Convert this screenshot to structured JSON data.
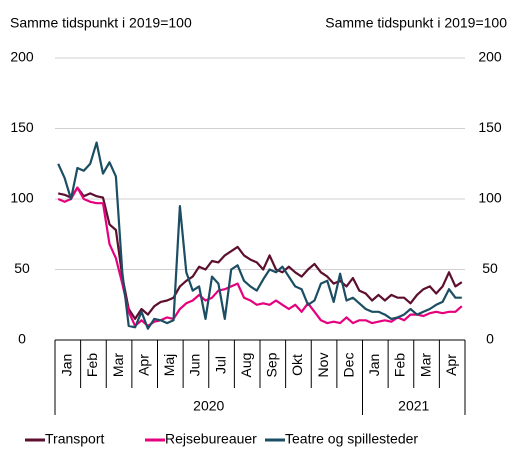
{
  "chart_data": {
    "type": "line",
    "y_axis_label": "Samme tidspunkt i 2019=100",
    "y2_axis_label": "Samme tidspunkt i 2019=100",
    "categories": [
      "Jan",
      null,
      null,
      null,
      "Feb",
      null,
      null,
      null,
      "Mar",
      null,
      null,
      null,
      "Apr",
      null,
      null,
      null,
      "Maj",
      null,
      null,
      null,
      "Jun",
      null,
      null,
      null,
      "Jul",
      null,
      null,
      null,
      "Aug",
      null,
      null,
      null,
      "Sep",
      null,
      null,
      null,
      "Okt",
      null,
      null,
      null,
      "Nov",
      null,
      null,
      null,
      "Dec",
      null,
      null,
      null,
      "Jan",
      null,
      null,
      null,
      "Feb",
      null,
      null,
      null,
      "Mar",
      null,
      null,
      null,
      "Apr",
      null,
      null,
      null
    ],
    "year_groups": [
      {
        "label": "2020",
        "categories": 48
      },
      {
        "label": "2021",
        "categories": 16
      }
    ],
    "series": [
      {
        "name": "Transport",
        "color": "#5c0f2e",
        "values": [
          104,
          103,
          101,
          108,
          102,
          104,
          102,
          101,
          82,
          78,
          45,
          22,
          15,
          22,
          18,
          24,
          27,
          28,
          30,
          38,
          42,
          45,
          52,
          50,
          56,
          55,
          60,
          63,
          66,
          60,
          57,
          55,
          50,
          60,
          50,
          48,
          52,
          48,
          45,
          50,
          54,
          48,
          45,
          40,
          42,
          38,
          44,
          35,
          33,
          28,
          32,
          28,
          32,
          30,
          30,
          26,
          32,
          36,
          38,
          33,
          38,
          48,
          38,
          41
        ]
      },
      {
        "name": "Rejsebureauer",
        "color": "#e6007e",
        "values": [
          100,
          98,
          100,
          108,
          100,
          98,
          97,
          97,
          68,
          58,
          40,
          20,
          10,
          14,
          10,
          13,
          14,
          16,
          15,
          22,
          26,
          28,
          32,
          28,
          30,
          35,
          36,
          38,
          40,
          30,
          28,
          25,
          26,
          25,
          28,
          25,
          22,
          25,
          20,
          26,
          20,
          14,
          12,
          13,
          12,
          16,
          12,
          14,
          14,
          12,
          13,
          14,
          13,
          16,
          14,
          18,
          18,
          17,
          19,
          20,
          19,
          20,
          20,
          24
        ]
      },
      {
        "name": "Teatre og spillesteder",
        "color": "#1c4e63",
        "values": [
          125,
          115,
          100,
          122,
          120,
          125,
          140,
          118,
          126,
          116,
          48,
          10,
          9,
          20,
          8,
          15,
          14,
          12,
          14,
          95,
          48,
          35,
          38,
          15,
          45,
          40,
          15,
          50,
          53,
          42,
          38,
          35,
          43,
          50,
          48,
          52,
          45,
          38,
          36,
          25,
          28,
          40,
          42,
          27,
          47,
          28,
          30,
          26,
          22,
          20,
          20,
          18,
          15,
          16,
          18,
          22,
          18,
          20,
          22,
          25,
          27,
          36,
          30,
          30
        ]
      }
    ],
    "ylim": [
      0,
      200
    ],
    "yticks": [
      0,
      50,
      100,
      150,
      200
    ],
    "y2lim": [
      0,
      200
    ],
    "y2ticks": [
      0,
      50,
      100,
      150,
      200
    ],
    "grid": true,
    "legend": "bottom"
  }
}
